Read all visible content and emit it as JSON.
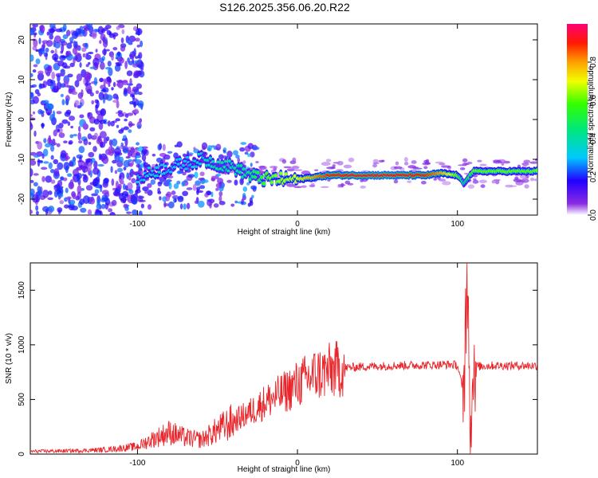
{
  "title": "S126.2025.356.06.20.R22",
  "chart_data": [
    {
      "type": "heatmap",
      "xlabel": "Height of straight line (km)",
      "ylabel": "Frequency (Hz)",
      "xlim": [
        -167,
        150
      ],
      "ylim": [
        -24,
        24
      ],
      "x_ticks": [
        -100,
        0,
        100
      ],
      "y_ticks": [
        20,
        10,
        0,
        -10,
        -20
      ],
      "colorbar": {
        "label": "Normalized spectral amplitude",
        "range": [
          0,
          1
        ],
        "ticks": [
          0.0,
          0.2,
          0.4,
          0.6,
          0.8
        ],
        "tick_labels": [
          "0.0",
          "0.2",
          "0.4",
          "0.6",
          "0.8"
        ]
      },
      "ridge": {
        "description_points_x": [
          -100,
          -90,
          -80,
          -70,
          -60,
          -50,
          -40,
          -30,
          -20,
          -10,
          0,
          10,
          20,
          40,
          60,
          80,
          90,
          100,
          104,
          110,
          130,
          150
        ],
        "frequency_y": [
          -15,
          -13,
          -12,
          -11,
          -10,
          -11,
          -12,
          -14,
          -15,
          -15,
          -15,
          -14.5,
          -14,
          -14,
          -14,
          -14,
          -13.5,
          -14,
          -16,
          -13,
          -13,
          -13
        ],
        "amplitude": [
          0.3,
          0.35,
          0.3,
          0.3,
          0.35,
          0.4,
          0.4,
          0.45,
          0.6,
          0.65,
          0.7,
          0.8,
          0.9,
          0.95,
          0.95,
          0.9,
          0.8,
          0.6,
          0.4,
          0.6,
          0.6,
          0.6
        ]
      },
      "grid": false
    },
    {
      "type": "line",
      "xlabel": "Height of straight line (km)",
      "ylabel": "SNR (10 * v/v)",
      "xlim": [
        -167,
        150
      ],
      "ylim": [
        0,
        1750
      ],
      "x_ticks": [
        -100,
        0,
        100
      ],
      "y_ticks": [
        0,
        500,
        1000,
        1500
      ],
      "series": [
        {
          "color": "#e8262b",
          "x": [
            -167,
            -140,
            -120,
            -100,
            -90,
            -80,
            -70,
            -60,
            -50,
            -40,
            -30,
            -20,
            -10,
            0,
            10,
            20,
            30,
            40,
            60,
            80,
            95,
            100,
            104,
            106,
            108,
            110,
            120,
            150
          ],
          "y": [
            25,
            30,
            40,
            70,
            140,
            200,
            150,
            130,
            220,
            300,
            380,
            480,
            550,
            640,
            720,
            760,
            790,
            800,
            810,
            815,
            820,
            815,
            550,
            1600,
            250,
            800,
            810,
            810
          ]
        }
      ]
    }
  ]
}
